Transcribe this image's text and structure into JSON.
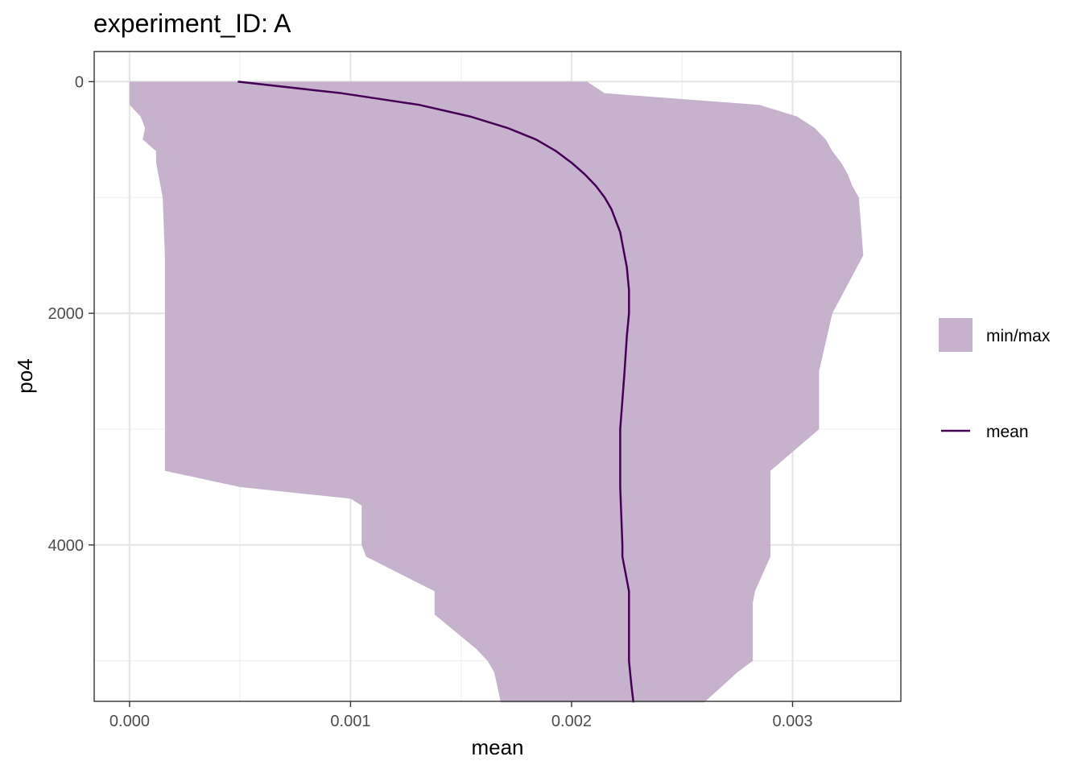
{
  "chart_data": {
    "type": "area",
    "title": "experiment_ID: A",
    "xlabel": "mean",
    "ylabel": "po4",
    "xlim": [
      -0.00016,
      0.00349
    ],
    "ylim": [
      5350,
      -260
    ],
    "y_reversed": true,
    "grid": true,
    "legend_position": "right",
    "x_ticks": [
      {
        "value": 0.0,
        "label": "0.000"
      },
      {
        "value": 0.001,
        "label": "0.001"
      },
      {
        "value": 0.002,
        "label": "0.002"
      },
      {
        "value": 0.003,
        "label": "0.003"
      }
    ],
    "y_ticks": [
      {
        "value": 0,
        "label": "0"
      },
      {
        "value": 2000,
        "label": "2000"
      },
      {
        "value": 4000,
        "label": "4000"
      }
    ],
    "series": [
      {
        "name": "min/max",
        "kind": "ribbon",
        "color": "#c6b2cc",
        "depth": [
          0,
          100,
          200,
          300,
          400,
          500,
          600,
          700,
          800,
          900,
          1000,
          1500,
          2000,
          2500,
          3000,
          3360,
          3500,
          3600,
          3660,
          4000,
          4100,
          4400,
          4500,
          4600,
          4900,
          5000,
          5100,
          5360
        ],
        "min": [
          0.0,
          0.0,
          0.0,
          5e-05,
          7e-05,
          6e-05,
          0.00012,
          0.00012,
          0.00013,
          0.00014,
          0.00015,
          0.00016,
          0.00016,
          0.00016,
          0.00016,
          0.00016,
          0.0005,
          0.001,
          0.00105,
          0.00105,
          0.00107,
          0.00138,
          0.00138,
          0.00138,
          0.00157,
          0.00162,
          0.00165,
          0.00168
        ],
        "max": [
          0.00207,
          0.00215,
          0.00285,
          0.00302,
          0.0031,
          0.00315,
          0.00318,
          0.00322,
          0.00325,
          0.00327,
          0.0033,
          0.00332,
          0.00318,
          0.00312,
          0.00312,
          0.0029,
          0.0029,
          0.0029,
          0.0029,
          0.0029,
          0.0029,
          0.00283,
          0.00282,
          0.00282,
          0.00282,
          0.00282,
          0.00275,
          0.0026
        ]
      },
      {
        "name": "mean",
        "kind": "line",
        "color": "#440154",
        "depth": [
          0,
          100,
          200,
          300,
          400,
          500,
          600,
          700,
          800,
          900,
          1000,
          1100,
          1200,
          1300,
          1400,
          1500,
          1600,
          1800,
          2000,
          2200,
          2500,
          3000,
          3360,
          3500,
          4000,
          4100,
          4400,
          5000,
          5200,
          5360
        ],
        "mean": [
          0.00049,
          0.00096,
          0.00131,
          0.00154,
          0.00171,
          0.00184,
          0.00193,
          0.002,
          0.00206,
          0.00211,
          0.00215,
          0.00218,
          0.0022,
          0.00222,
          0.00223,
          0.00224,
          0.00225,
          0.00226,
          0.00226,
          0.00225,
          0.00224,
          0.00222,
          0.00222,
          0.00222,
          0.00223,
          0.00223,
          0.00226,
          0.00226,
          0.00227,
          0.00228
        ]
      }
    ]
  },
  "legend": {
    "items": [
      {
        "label": "min/max",
        "color": "#c6b2cc"
      },
      {
        "label": "mean",
        "color": "#440154"
      }
    ]
  }
}
